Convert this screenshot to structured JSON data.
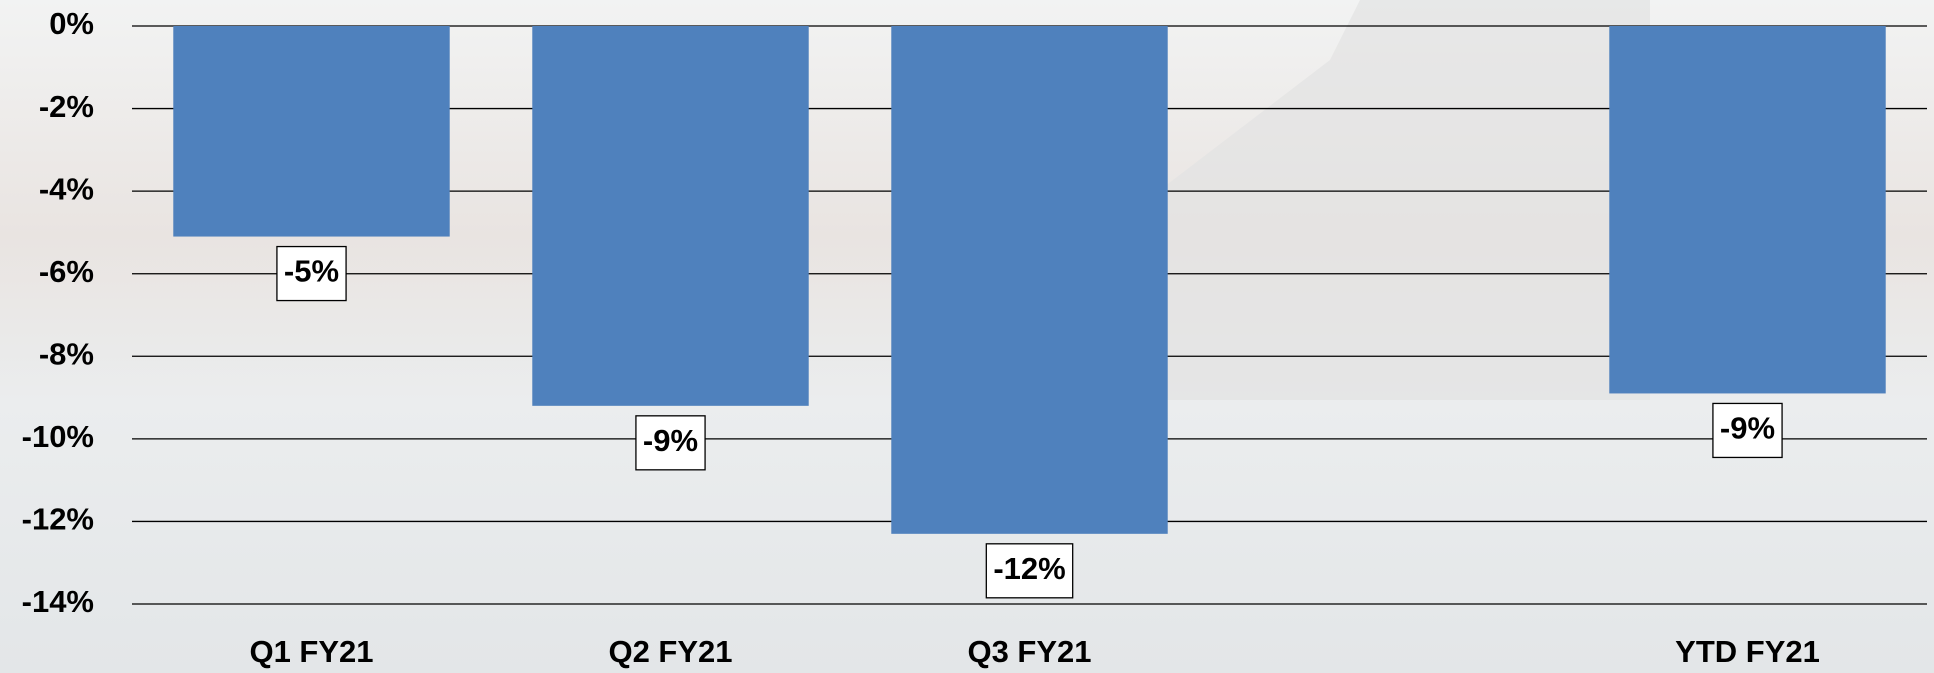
{
  "chart_data": {
    "type": "bar",
    "categories": [
      "Q1 FY21",
      "Q2 FY21",
      "Q3 FY21",
      null,
      "YTD FY21"
    ],
    "values": [
      -5.1,
      -9.2,
      -12.3,
      null,
      -8.9
    ],
    "value_labels": [
      "-5%",
      "-9%",
      "-12%",
      null,
      "-9%"
    ],
    "color": "#4f81bd",
    "ylim": [
      -14,
      0
    ],
    "yticks": [
      {
        "value": 0,
        "label": "0%"
      },
      {
        "value": -2,
        "label": "-2%"
      },
      {
        "value": -4,
        "label": "-4%"
      },
      {
        "value": -6,
        "label": "-6%"
      },
      {
        "value": -8,
        "label": "-8%"
      },
      {
        "value": -10,
        "label": "-10%"
      },
      {
        "value": -12,
        "label": "-12%"
      },
      {
        "value": -14,
        "label": "-14%"
      }
    ],
    "grid": true
  }
}
